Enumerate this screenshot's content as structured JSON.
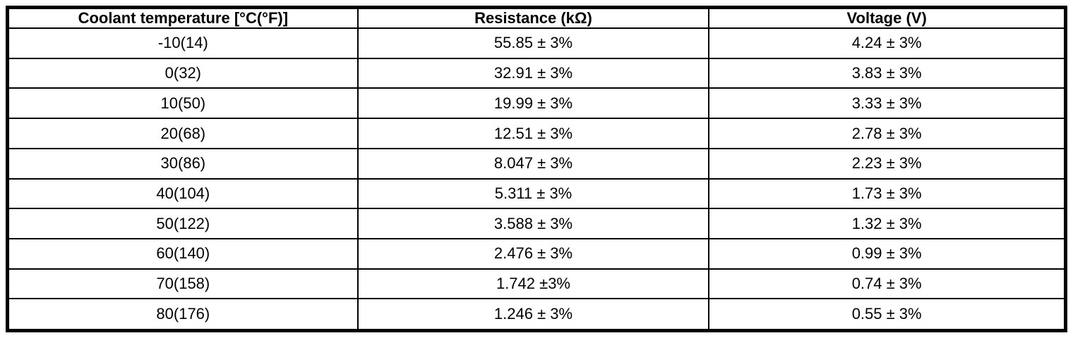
{
  "page": {
    "background": "#ffffff",
    "border_color": "#000000"
  },
  "table": {
    "title": "coolant-temperature-sensor-specification",
    "columns": [
      "Coolant temperature [°C(°F)]",
      "Resistance (kΩ)",
      "Voltage (V)"
    ],
    "rows": [
      [
        "-10(14)",
        "55.85 ± 3%",
        "4.24 ± 3%"
      ],
      [
        "0(32)",
        "32.91 ± 3%",
        "3.83 ± 3%"
      ],
      [
        "10(50)",
        "19.99 ± 3%",
        "3.33 ± 3%"
      ],
      [
        "20(68)",
        "12.51 ± 3%",
        "2.78 ± 3%"
      ],
      [
        "30(86)",
        "8.047 ± 3%",
        "2.23 ± 3%"
      ],
      [
        "40(104)",
        "5.311 ± 3%",
        "1.73 ± 3%"
      ],
      [
        "50(122)",
        "3.588 ± 3%",
        "1.32 ± 3%"
      ],
      [
        "60(140)",
        "2.476 ± 3%",
        "0.99 ± 3%"
      ],
      [
        "70(158)",
        "1.742 ±3%",
        "0.74 ± 3%"
      ],
      [
        "80(176)",
        "1.246 ± 3%",
        "0.55 ± 3%"
      ]
    ]
  }
}
